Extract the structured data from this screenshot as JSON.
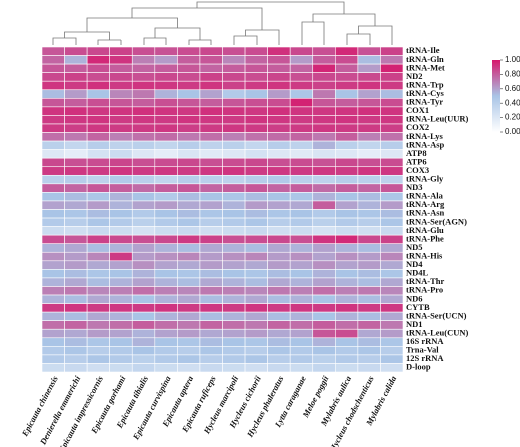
{
  "chart_data": {
    "type": "heatmap",
    "rows": [
      "tRNA-Ile",
      "tRNA-Gln",
      "tRNA-Met",
      "ND2",
      "tRNA-Trp",
      "tRNA-Cys",
      "tRNA-Tyr",
      "COX1",
      "tRNA-Leu(UUR)",
      "COX2",
      "tRNA-Lys",
      "tRNA-Asp",
      "ATP8",
      "ATP6",
      "COX3",
      "tRNA-Gly",
      "ND3",
      "tRNA-Ala",
      "tRNA-Arg",
      "tRNA-Asn",
      "tRNA-Ser(AGN)",
      "tRNA-Glu",
      "tRNA-Phe",
      "ND5",
      "tRNA-His",
      "ND4",
      "ND4L",
      "tRNA-Thr",
      "tRNA-Pro",
      "ND6",
      "CYTB",
      "tRNA-Ser(UCN)",
      "ND1",
      "tRNA-Leu(CUN)",
      "16S rRNA",
      "Trna-Val",
      "12S rRNA",
      "D-loop"
    ],
    "columns": [
      "Epicauta chinensis",
      "Denierella emmerichi",
      "Epicauta impressicornis",
      "Epicauta gorhami",
      "Epicauta tibialis",
      "Epicauta curvispina",
      "Epicauta aptera",
      "Epicauta ruficeps",
      "Hycleus marcipoli",
      "Hycleus cichorii",
      "Hycleus phaleratus",
      "Lytta caraganae",
      "Meloe poggii",
      "Mylabris aulica",
      "Hycleus chodschenticus",
      "Mylabris calida"
    ],
    "values": [
      [
        0.82,
        0.85,
        0.86,
        0.88,
        0.84,
        0.83,
        0.85,
        0.86,
        0.84,
        0.85,
        0.93,
        0.86,
        0.84,
        0.95,
        0.83,
        0.88
      ],
      [
        0.78,
        0.55,
        0.95,
        0.92,
        0.7,
        0.62,
        0.8,
        0.82,
        0.68,
        0.78,
        0.82,
        0.62,
        0.8,
        0.85,
        0.52,
        0.72
      ],
      [
        0.82,
        0.8,
        0.84,
        0.8,
        0.78,
        0.8,
        0.82,
        0.78,
        0.8,
        0.82,
        0.8,
        0.78,
        0.96,
        0.8,
        0.62,
        0.97
      ],
      [
        0.86,
        0.88,
        0.85,
        0.86,
        0.84,
        0.86,
        0.85,
        0.88,
        0.86,
        0.85,
        0.87,
        0.84,
        0.86,
        0.85,
        0.86,
        0.88
      ],
      [
        0.92,
        0.9,
        0.93,
        0.9,
        0.92,
        0.91,
        0.9,
        0.92,
        0.88,
        0.9,
        0.92,
        0.9,
        0.88,
        0.9,
        0.92,
        0.9
      ],
      [
        0.52,
        0.62,
        0.5,
        0.68,
        0.72,
        0.55,
        0.5,
        0.6,
        0.45,
        0.5,
        0.62,
        0.48,
        0.72,
        0.5,
        0.6,
        0.52
      ],
      [
        0.82,
        0.8,
        0.84,
        0.82,
        0.8,
        0.84,
        0.82,
        0.8,
        0.82,
        0.84,
        0.85,
        0.97,
        0.82,
        0.8,
        0.82,
        0.85
      ],
      [
        0.92,
        0.93,
        0.91,
        0.92,
        0.93,
        0.92,
        0.91,
        0.93,
        0.92,
        0.91,
        0.93,
        0.92,
        0.91,
        0.92,
        0.93,
        0.92
      ],
      [
        0.9,
        0.91,
        0.92,
        0.9,
        0.91,
        0.9,
        0.92,
        0.91,
        0.9,
        0.92,
        0.91,
        0.9,
        0.91,
        0.92,
        0.9,
        0.91
      ],
      [
        0.9,
        0.89,
        0.91,
        0.9,
        0.9,
        0.91,
        0.89,
        0.9,
        0.91,
        0.9,
        0.89,
        0.9,
        0.91,
        0.9,
        0.9,
        0.89
      ],
      [
        0.75,
        0.72,
        0.78,
        0.7,
        0.74,
        0.76,
        0.72,
        0.75,
        0.7,
        0.74,
        0.76,
        0.78,
        0.72,
        0.8,
        0.7,
        0.74
      ],
      [
        0.4,
        0.35,
        0.42,
        0.38,
        0.4,
        0.36,
        0.42,
        0.38,
        0.4,
        0.35,
        0.42,
        0.38,
        0.55,
        0.4,
        0.36,
        0.42
      ],
      [
        0.2,
        0.15,
        0.25,
        0.3,
        0.2,
        0.15,
        0.22,
        0.18,
        0.2,
        0.25,
        0.2,
        0.18,
        0.22,
        0.2,
        0.15,
        0.2
      ],
      [
        0.86,
        0.84,
        0.85,
        0.87,
        0.84,
        0.85,
        0.86,
        0.84,
        0.85,
        0.86,
        0.84,
        0.85,
        0.83,
        0.86,
        0.84,
        0.85
      ],
      [
        0.9,
        0.91,
        0.9,
        0.92,
        0.9,
        0.91,
        0.9,
        0.91,
        0.92,
        0.9,
        0.91,
        0.9,
        0.91,
        0.9,
        0.92,
        0.91
      ],
      [
        0.4,
        0.42,
        0.38,
        0.45,
        0.4,
        0.36,
        0.42,
        0.4,
        0.38,
        0.42,
        0.45,
        0.4,
        0.38,
        0.42,
        0.4,
        0.38
      ],
      [
        0.8,
        0.78,
        0.82,
        0.8,
        0.76,
        0.8,
        0.82,
        0.78,
        0.8,
        0.82,
        0.78,
        0.8,
        0.76,
        0.8,
        0.78,
        0.82
      ],
      [
        0.5,
        0.52,
        0.48,
        0.55,
        0.5,
        0.45,
        0.52,
        0.5,
        0.48,
        0.52,
        0.5,
        0.48,
        0.55,
        0.5,
        0.52,
        0.48
      ],
      [
        0.6,
        0.58,
        0.62,
        0.55,
        0.6,
        0.62,
        0.58,
        0.6,
        0.55,
        0.62,
        0.6,
        0.58,
        0.8,
        0.6,
        0.55,
        0.62
      ],
      [
        0.5,
        0.48,
        0.52,
        0.5,
        0.45,
        0.5,
        0.52,
        0.48,
        0.5,
        0.52,
        0.48,
        0.5,
        0.45,
        0.5,
        0.48,
        0.52
      ],
      [
        0.45,
        0.42,
        0.48,
        0.45,
        0.4,
        0.45,
        0.48,
        0.42,
        0.45,
        0.48,
        0.42,
        0.45,
        0.4,
        0.45,
        0.42,
        0.48
      ],
      [
        0.3,
        0.28,
        0.32,
        0.3,
        0.25,
        0.3,
        0.32,
        0.28,
        0.3,
        0.32,
        0.28,
        0.3,
        0.25,
        0.3,
        0.28,
        0.32
      ],
      [
        0.85,
        0.82,
        0.88,
        0.86,
        0.84,
        0.86,
        0.9,
        0.88,
        0.84,
        0.85,
        0.86,
        0.84,
        0.92,
        0.95,
        0.86,
        0.88
      ],
      [
        0.55,
        0.58,
        0.52,
        0.55,
        0.6,
        0.55,
        0.52,
        0.58,
        0.55,
        0.52,
        0.58,
        0.55,
        0.6,
        0.55,
        0.52,
        0.58
      ],
      [
        0.65,
        0.62,
        0.68,
        0.9,
        0.62,
        0.65,
        0.68,
        0.62,
        0.65,
        0.68,
        0.62,
        0.65,
        0.6,
        0.65,
        0.62,
        0.68
      ],
      [
        0.6,
        0.62,
        0.58,
        0.6,
        0.65,
        0.6,
        0.58,
        0.62,
        0.6,
        0.58,
        0.62,
        0.6,
        0.65,
        0.6,
        0.62,
        0.58
      ],
      [
        0.5,
        0.52,
        0.48,
        0.5,
        0.55,
        0.5,
        0.48,
        0.52,
        0.5,
        0.48,
        0.52,
        0.5,
        0.55,
        0.5,
        0.52,
        0.48
      ],
      [
        0.55,
        0.58,
        0.52,
        0.55,
        0.6,
        0.55,
        0.52,
        0.58,
        0.55,
        0.52,
        0.58,
        0.55,
        0.6,
        0.55,
        0.52,
        0.58
      ],
      [
        0.7,
        0.72,
        0.68,
        0.7,
        0.75,
        0.7,
        0.68,
        0.72,
        0.7,
        0.68,
        0.72,
        0.7,
        0.75,
        0.7,
        0.72,
        0.68
      ],
      [
        0.55,
        0.52,
        0.58,
        0.55,
        0.5,
        0.55,
        0.58,
        0.52,
        0.55,
        0.58,
        0.52,
        0.55,
        0.5,
        0.55,
        0.52,
        0.58
      ],
      [
        0.9,
        0.92,
        0.9,
        0.91,
        0.9,
        0.92,
        0.9,
        0.91,
        0.9,
        0.92,
        0.9,
        0.91,
        0.9,
        0.92,
        0.9,
        0.91
      ],
      [
        0.55,
        0.52,
        0.58,
        0.55,
        0.5,
        0.55,
        0.58,
        0.52,
        0.55,
        0.58,
        0.52,
        0.55,
        0.5,
        0.55,
        0.52,
        0.58
      ],
      [
        0.75,
        0.78,
        0.72,
        0.75,
        0.8,
        0.75,
        0.72,
        0.78,
        0.75,
        0.72,
        0.78,
        0.75,
        0.8,
        0.75,
        0.78,
        0.72
      ],
      [
        0.6,
        0.58,
        0.62,
        0.6,
        0.55,
        0.6,
        0.62,
        0.58,
        0.6,
        0.62,
        0.58,
        0.6,
        0.82,
        0.85,
        0.58,
        0.62
      ],
      [
        0.5,
        0.52,
        0.48,
        0.5,
        0.55,
        0.5,
        0.48,
        0.52,
        0.5,
        0.48,
        0.52,
        0.5,
        0.55,
        0.5,
        0.52,
        0.48
      ],
      [
        0.45,
        0.48,
        0.42,
        0.45,
        0.5,
        0.45,
        0.42,
        0.48,
        0.45,
        0.42,
        0.48,
        0.45,
        0.5,
        0.45,
        0.48,
        0.42
      ],
      [
        0.45,
        0.42,
        0.48,
        0.45,
        0.4,
        0.45,
        0.48,
        0.42,
        0.45,
        0.48,
        0.42,
        0.45,
        0.4,
        0.45,
        0.42,
        0.48
      ],
      [
        0.3,
        0.32,
        0.28,
        0.3,
        0.35,
        0.3,
        0.28,
        0.32,
        0.3,
        0.28,
        0.32,
        0.3,
        0.35,
        0.3,
        0.32,
        0.28
      ]
    ],
    "zlim": [
      0,
      1
    ],
    "zticks": [
      {
        "value": 1,
        "label": "1.00"
      },
      {
        "value": 0.8,
        "label": "0.80"
      },
      {
        "value": 0.6,
        "label": "0.60"
      },
      {
        "value": 0.4,
        "label": "0.40"
      },
      {
        "value": 0.2,
        "label": "0.20"
      },
      {
        "value": 0,
        "label": "0.00"
      }
    ],
    "colors": [
      "#ffffff",
      "#a9c4e6",
      "#d6186c"
    ]
  }
}
